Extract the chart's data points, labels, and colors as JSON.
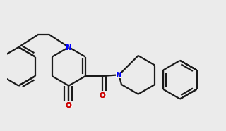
{
  "bg_color": "#ebebeb",
  "bond_color": "#1a1a1a",
  "N_color": "#0000ff",
  "O_color": "#cc0000",
  "line_width": 1.6,
  "dbo": 0.012
}
